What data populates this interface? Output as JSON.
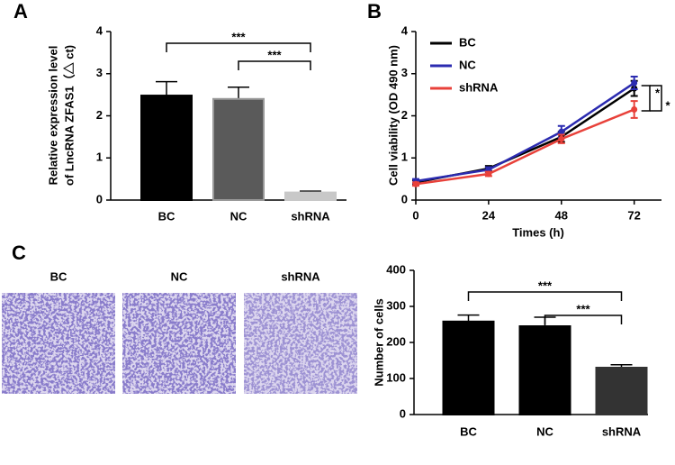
{
  "chart_data": [
    {
      "type": "bar",
      "panel": "A",
      "categories": [
        "BC",
        "NC",
        "shRNA"
      ],
      "values": [
        2.48,
        2.4,
        0.18
      ],
      "errors": [
        0.33,
        0.28,
        0.03
      ],
      "colors": [
        "#000000",
        "#5a5a5a",
        "#c8c8c8"
      ],
      "ylabel": [
        "Relative expression level",
        "of LncRNA ZFAS1（△ ct)"
      ],
      "ylim": [
        0,
        4
      ],
      "yticks": [
        0,
        1,
        2,
        3,
        4
      ],
      "annotations": [
        "***",
        "***"
      ]
    },
    {
      "type": "line",
      "panel": "B",
      "x": [
        0,
        24,
        48,
        72
      ],
      "xlim": [
        0,
        81
      ],
      "xticks": [
        0,
        24,
        48,
        72
      ],
      "ylim": [
        0,
        4
      ],
      "yticks": [
        0,
        1,
        2,
        3,
        4
      ],
      "xlabel": "Times (h)",
      "ylabel": "Cell viability (OD 490 nm)",
      "series": [
        {
          "name": "BC",
          "color": "#000000",
          "values": [
            0.42,
            0.75,
            1.5,
            2.65
          ],
          "errors": [
            0.05,
            0.06,
            0.12,
            0.18
          ]
        },
        {
          "name": "NC",
          "color": "#2b2bb0",
          "values": [
            0.45,
            0.72,
            1.62,
            2.78
          ],
          "errors": [
            0.05,
            0.06,
            0.14,
            0.15
          ]
        },
        {
          "name": "shRNA",
          "color": "#e8413a",
          "values": [
            0.38,
            0.62,
            1.45,
            2.15
          ],
          "errors": [
            0.04,
            0.05,
            0.1,
            0.2
          ]
        }
      ],
      "legend": "upper left",
      "annotations": [
        "*",
        "*"
      ]
    },
    {
      "type": "bar",
      "panel": "C",
      "categories": [
        "BC",
        "NC",
        "shRNA"
      ],
      "values": [
        258,
        245,
        130
      ],
      "errors": [
        18,
        25,
        8
      ],
      "colors": [
        "#000000",
        "#000000",
        "#333333"
      ],
      "ylabel": [
        "Number of cells"
      ],
      "ylim": [
        0,
        400
      ],
      "yticks": [
        0,
        100,
        200,
        300,
        400
      ],
      "annotations": [
        "***",
        "***"
      ],
      "micrographs": [
        "BC",
        "NC",
        "shRNA"
      ]
    }
  ]
}
